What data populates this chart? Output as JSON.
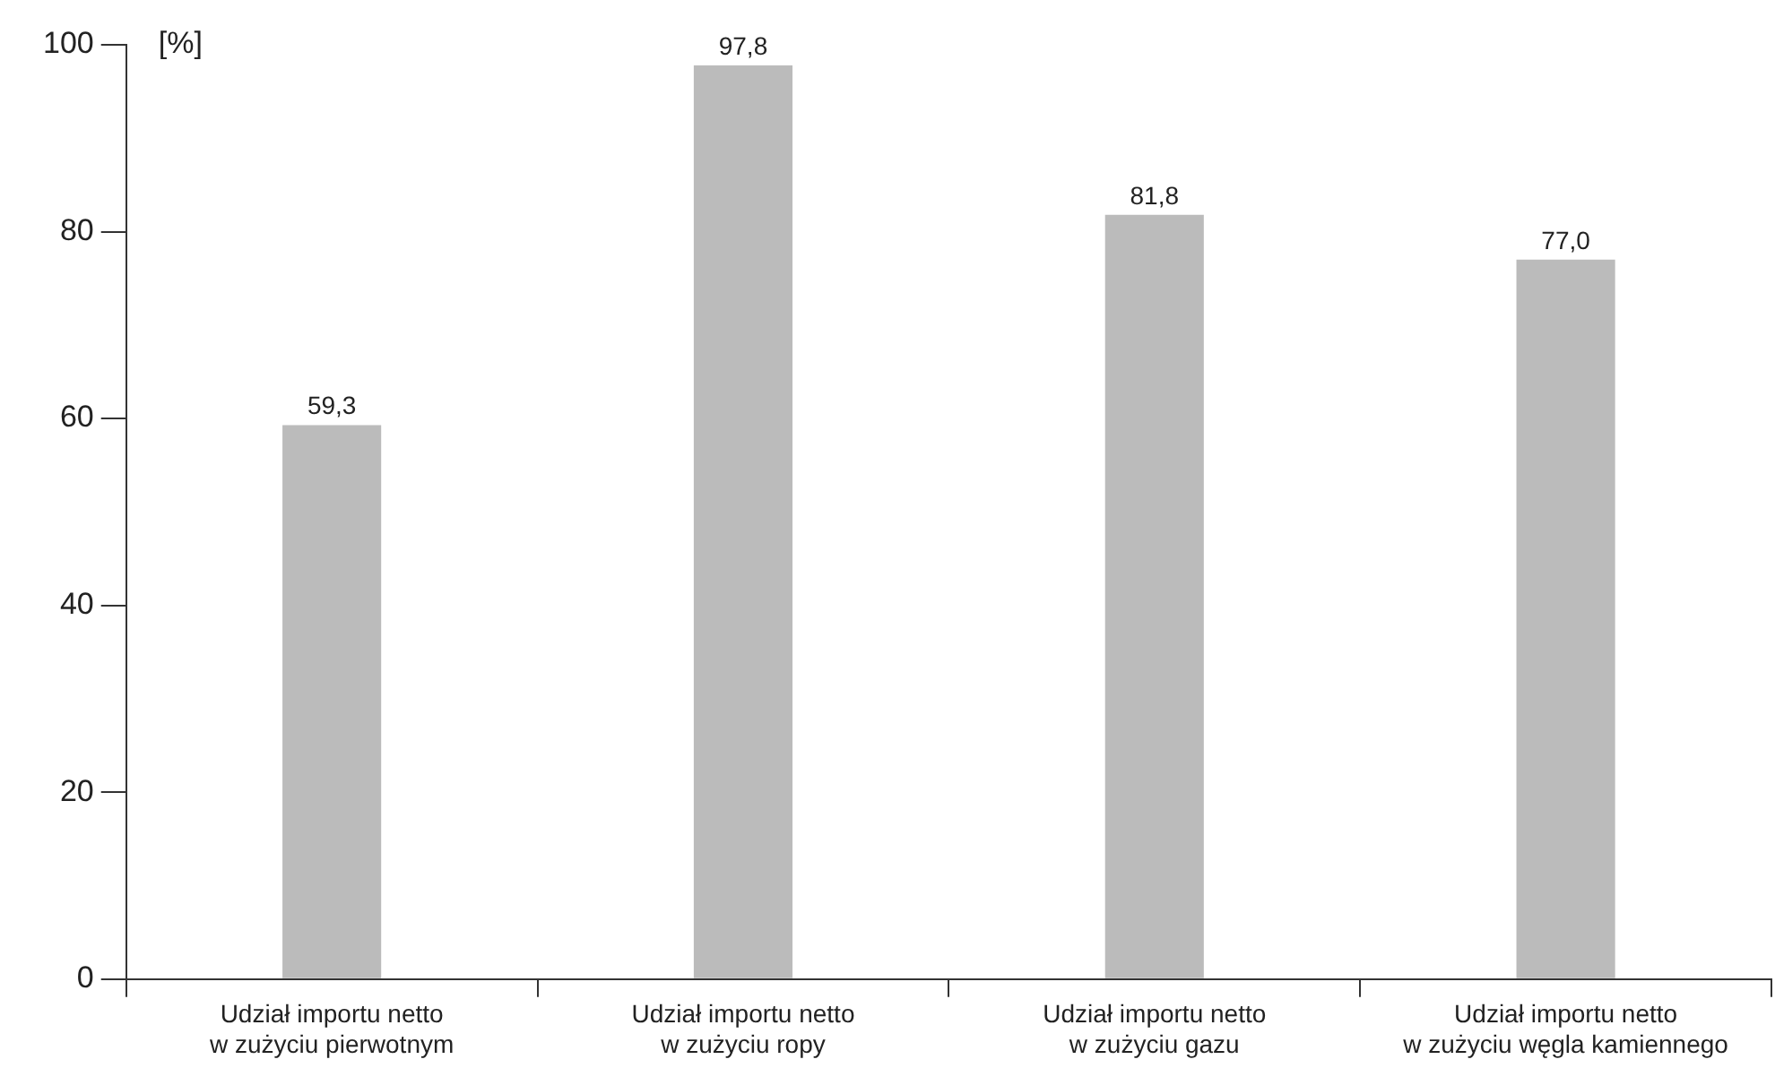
{
  "chart_data": {
    "type": "bar",
    "ylabel": "[%]",
    "categories": [
      "Udział importu netto\nw zużyciu pierwotnym",
      "Udział importu netto\nw zużyciu ropy",
      "Udział importu netto\nw zużyciu gazu",
      "Udział importu netto\nw zużyciu węgla kamiennego"
    ],
    "values": [
      59.3,
      97.8,
      81.8,
      77.0
    ],
    "value_labels": [
      "59,3",
      "97,8",
      "81,8",
      "77,0"
    ],
    "color": "#bbbbbb",
    "ylim": [
      0,
      100
    ],
    "yticks": [
      0,
      20,
      40,
      60,
      80,
      100
    ],
    "grid": false,
    "legend": false
  }
}
